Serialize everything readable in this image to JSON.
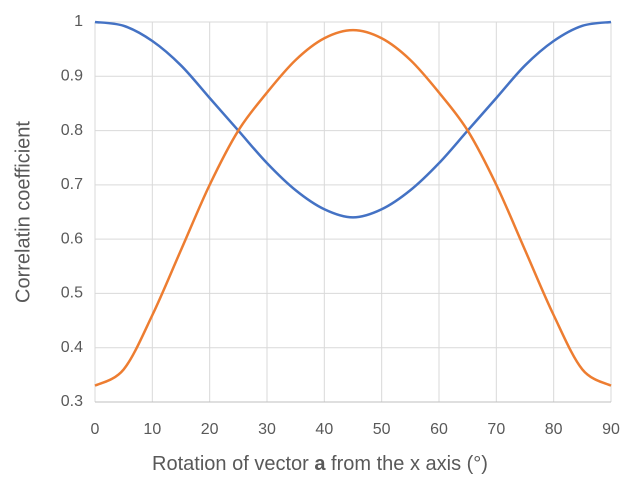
{
  "chart_data": {
    "type": "line",
    "xlabel": [
      "Rotation of vector ",
      "a",
      " from the x axis (°)"
    ],
    "ylabel": "Correlatin coefficient",
    "x": [
      0,
      5,
      10,
      15,
      20,
      25,
      30,
      35,
      40,
      45,
      50,
      55,
      60,
      65,
      70,
      75,
      80,
      85,
      90
    ],
    "series": [
      {
        "color": "#4472c4",
        "values": [
          1,
          0.993,
          0.965,
          0.92,
          0.86,
          0.8,
          0.74,
          0.69,
          0.655,
          0.64,
          0.655,
          0.69,
          0.74,
          0.8,
          0.86,
          0.92,
          0.965,
          0.993,
          1
        ]
      },
      {
        "color": "#ed7d31",
        "values": [
          0.33,
          0.36,
          0.46,
          0.58,
          0.7,
          0.8,
          0.87,
          0.93,
          0.97,
          0.985,
          0.97,
          0.93,
          0.87,
          0.8,
          0.7,
          0.58,
          0.46,
          0.36,
          0.33
        ]
      }
    ],
    "xlim": [
      0,
      90
    ],
    "xticks": [
      0,
      10,
      20,
      30,
      40,
      50,
      60,
      70,
      80,
      90
    ],
    "ylim": [
      0.3,
      1
    ],
    "yticks": [
      0.3,
      0.4,
      0.5,
      0.6,
      0.7,
      0.8,
      0.9,
      1
    ],
    "grid": true
  }
}
